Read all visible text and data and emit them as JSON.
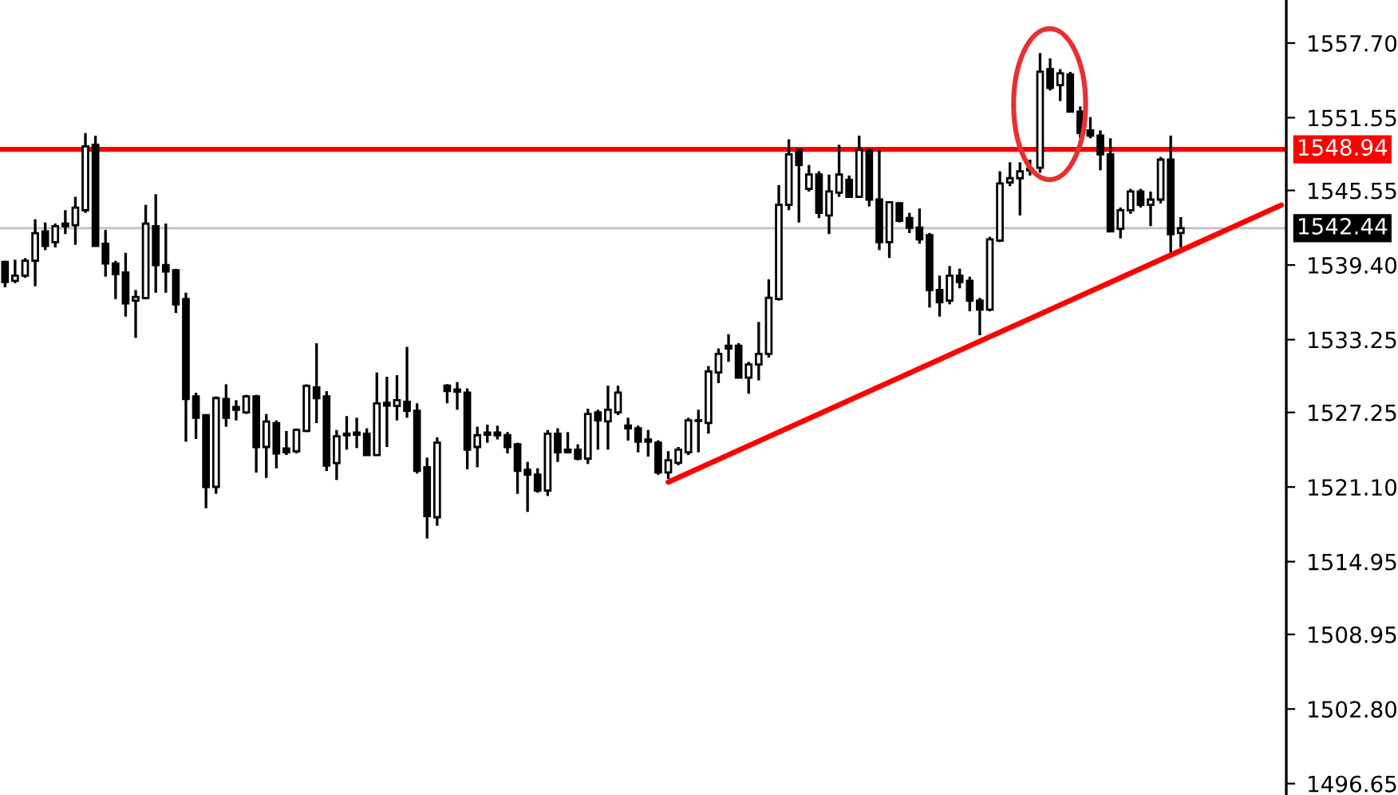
{
  "chart_data": {
    "type": "candlestick",
    "categories": [
      null,
      null,
      null,
      null,
      null,
      null,
      null,
      null,
      null,
      null,
      null,
      null,
      null,
      null,
      null,
      null,
      null,
      null,
      null,
      null,
      null,
      null,
      null,
      null,
      null,
      null,
      null,
      null,
      null,
      null,
      null,
      null,
      null,
      null,
      null,
      null,
      null,
      null,
      null,
      null,
      null,
      null,
      null,
      null,
      null,
      null,
      null,
      null,
      null,
      null,
      null,
      null,
      null,
      null,
      null,
      null,
      null,
      null,
      null,
      null,
      null,
      null,
      null,
      null,
      null,
      null,
      null,
      null,
      null,
      null,
      null,
      null,
      null,
      null,
      null,
      null,
      null,
      null,
      null,
      null,
      null,
      null,
      null,
      null,
      null,
      null,
      null,
      null,
      null,
      null,
      null,
      null,
      null,
      null,
      null,
      null,
      null,
      null,
      null,
      null,
      null,
      null,
      null,
      null,
      null,
      null,
      null,
      null,
      null,
      null,
      null,
      null,
      null,
      null,
      null,
      null,
      null,
      null,
      null,
      null,
      null,
      null,
      null,
      null,
      null,
      null,
      null,
      null
    ],
    "ohlc": [
      [
        1539.66,
        1539.75,
        1537.56,
        1538.0
      ],
      [
        1538.09,
        1539.84,
        1537.91,
        1538.52
      ],
      [
        1538.52,
        1539.97,
        1538.35,
        1539.75
      ],
      [
        1539.75,
        1543.17,
        1537.65,
        1542.03
      ],
      [
        1542.17,
        1542.91,
        1540.63,
        1540.98
      ],
      [
        1541.29,
        1542.82,
        1540.85,
        1542.6
      ],
      [
        1542.82,
        1543.92,
        1541.95,
        1542.6
      ],
      [
        1542.69,
        1545.02,
        1541.07,
        1544.14
      ],
      [
        1543.92,
        1550.28,
        1543.7,
        1549.18
      ],
      [
        1549.32,
        1550.06,
        1540.98,
        1540.98
      ],
      [
        1541.16,
        1542.3,
        1538.44,
        1539.53
      ],
      [
        1539.53,
        1539.75,
        1536.59,
        1538.66
      ],
      [
        1538.79,
        1540.41,
        1535.15,
        1536.24
      ],
      [
        1536.46,
        1537.34,
        1533.39,
        1536.77
      ],
      [
        1536.68,
        1544.36,
        1536.59,
        1542.82
      ],
      [
        1542.6,
        1545.24,
        1537.12,
        1539.4
      ],
      [
        1539.4,
        1542.82,
        1537.12,
        1538.87
      ],
      [
        1538.96,
        1539.09,
        1535.45,
        1536.16
      ],
      [
        1536.59,
        1537.12,
        1524.84,
        1528.35
      ],
      [
        1528.57,
        1528.87,
        1525.06,
        1526.81
      ],
      [
        1527.03,
        1527.03,
        1519.35,
        1521.11
      ],
      [
        1521.11,
        1528.57,
        1520.54,
        1528.43
      ],
      [
        1528.35,
        1529.57,
        1526.07,
        1526.81
      ],
      [
        1527.69,
        1528.26,
        1526.59,
        1527.47
      ],
      [
        1527.25,
        1528.7,
        1527.12,
        1528.57
      ],
      [
        1528.57,
        1528.7,
        1522.29,
        1524.4
      ],
      [
        1524.4,
        1527.12,
        1521.85,
        1526.5
      ],
      [
        1526.37,
        1526.59,
        1522.64,
        1523.87
      ],
      [
        1524.27,
        1525.72,
        1523.74,
        1523.96
      ],
      [
        1524.05,
        1525.93,
        1523.87,
        1525.8
      ],
      [
        1525.72,
        1529.57,
        1525.63,
        1529.44
      ],
      [
        1529.31,
        1532.95,
        1526.37,
        1528.43
      ],
      [
        1528.57,
        1529.0,
        1522.42,
        1522.86
      ],
      [
        1523.08,
        1525.8,
        1521.68,
        1525.28
      ],
      [
        1525.5,
        1526.95,
        1524.18,
        1525.37
      ],
      [
        1525.41,
        1526.81,
        1524.31,
        1525.59
      ],
      [
        1525.5,
        1525.94,
        1523.7,
        1523.74
      ],
      [
        1523.74,
        1530.54,
        1523.7,
        1528.0
      ],
      [
        1528.04,
        1530.19,
        1524.4,
        1527.82
      ],
      [
        1527.78,
        1530.32,
        1526.59,
        1528.26
      ],
      [
        1528.13,
        1532.65,
        1526.81,
        1527.38
      ],
      [
        1527.38,
        1528.0,
        1522.21,
        1522.43
      ],
      [
        1522.73,
        1523.52,
        1516.86,
        1518.7
      ],
      [
        1518.61,
        1525.19,
        1517.91,
        1524.75
      ],
      [
        1529.45,
        1529.58,
        1528.0,
        1529.01
      ],
      [
        1529.14,
        1529.75,
        1527.47,
        1528.96
      ],
      [
        1528.88,
        1529.23,
        1522.56,
        1524.18
      ],
      [
        1524.4,
        1526.07,
        1522.73,
        1525.37
      ],
      [
        1525.41,
        1526.24,
        1524.75,
        1525.59
      ],
      [
        1525.59,
        1526.16,
        1525.02,
        1525.37
      ],
      [
        1525.37,
        1525.63,
        1523.87,
        1524.4
      ],
      [
        1524.62,
        1524.75,
        1520.54,
        1522.43
      ],
      [
        1522.52,
        1523.17,
        1519.05,
        1522.12
      ],
      [
        1522.12,
        1522.65,
        1520.63,
        1520.8
      ],
      [
        1520.8,
        1525.8,
        1520.36,
        1525.5
      ],
      [
        1525.5,
        1525.94,
        1523.17,
        1523.96
      ],
      [
        1524.18,
        1525.63,
        1523.87,
        1523.96
      ],
      [
        1524.18,
        1524.62,
        1523.3,
        1523.44
      ],
      [
        1523.44,
        1527.56,
        1523.0,
        1527.12
      ],
      [
        1527.25,
        1527.47,
        1524.18,
        1526.59
      ],
      [
        1526.51,
        1529.45,
        1524.18,
        1527.47
      ],
      [
        1527.25,
        1529.45,
        1527.03,
        1528.88
      ],
      [
        1526.16,
        1526.81,
        1524.93,
        1525.94
      ],
      [
        1525.94,
        1526.16,
        1523.96,
        1524.84
      ],
      [
        1524.84,
        1525.8,
        1523.61,
        1525.02
      ],
      [
        1524.75,
        1524.95,
        1522.1,
        1522.3
      ],
      [
        1522.3,
        1524.05,
        1521.77,
        1523.31
      ],
      [
        1523.09,
        1524.4,
        1522.9,
        1524.18
      ],
      [
        1523.96,
        1526.81,
        1523.74,
        1526.6
      ],
      [
        1526.6,
        1527.47,
        1523.96,
        1526.55
      ],
      [
        1526.38,
        1531.07,
        1525.5,
        1530.63
      ],
      [
        1530.54,
        1532.52,
        1529.67,
        1532.08
      ],
      [
        1532.74,
        1533.7,
        1531.42,
        1532.52
      ],
      [
        1532.74,
        1532.96,
        1530.11,
        1530.11
      ],
      [
        1530.11,
        1531.42,
        1528.79,
        1531.2
      ],
      [
        1531.2,
        1534.71,
        1529.89,
        1532.08
      ],
      [
        1532.08,
        1538.22,
        1531.77,
        1536.69
      ],
      [
        1536.6,
        1545.99,
        1536.47,
        1544.36
      ],
      [
        1544.36,
        1549.76,
        1543.92,
        1548.53
      ],
      [
        1548.88,
        1548.97,
        1542.91,
        1547.65
      ],
      [
        1545.68,
        1547.65,
        1545.46,
        1546.86
      ],
      [
        1546.86,
        1547.13,
        1543.27,
        1543.7
      ],
      [
        1543.49,
        1546.86,
        1541.95,
        1545.46
      ],
      [
        1545.37,
        1549.32,
        1545.02,
        1546.86
      ],
      [
        1546.42,
        1546.78,
        1544.93,
        1545.02
      ],
      [
        1545.02,
        1550.07,
        1544.93,
        1548.88
      ],
      [
        1548.88,
        1548.97,
        1544.23,
        1544.8
      ],
      [
        1544.8,
        1548.88,
        1540.63,
        1541.29
      ],
      [
        1541.29,
        1544.58,
        1539.98,
        1544.58
      ],
      [
        1544.49,
        1544.58,
        1542.91,
        1543.05
      ],
      [
        1543.27,
        1543.7,
        1542.04,
        1542.48
      ],
      [
        1542.48,
        1544.06,
        1541.16,
        1541.51
      ],
      [
        1541.86,
        1542.04,
        1535.9,
        1537.34
      ],
      [
        1537.34,
        1538.53,
        1535.15,
        1536.33
      ],
      [
        1536.47,
        1539.32,
        1536.16,
        1538.53
      ],
      [
        1538.53,
        1539.1,
        1537.48,
        1538.0
      ],
      [
        1538.09,
        1538.44,
        1535.59,
        1536.47
      ],
      [
        1536.47,
        1536.69,
        1533.61,
        1535.72
      ],
      [
        1535.72,
        1541.73,
        1535.59,
        1541.51
      ],
      [
        1541.42,
        1547.13,
        1541.29,
        1546.12
      ],
      [
        1546.21,
        1547.87,
        1545.9,
        1546.56
      ],
      [
        1546.56,
        1547.87,
        1543.49,
        1547.13
      ],
      [
        1547.21,
        1548.09,
        1546.78,
        1547.35
      ],
      [
        1547.43,
        1556.87,
        1547.0,
        1555.33
      ],
      [
        1555.55,
        1556.43,
        1553.79,
        1554.01
      ],
      [
        1554.23,
        1555.55,
        1552.92,
        1555.2
      ],
      [
        1555.11,
        1555.33,
        1552.04,
        1552.04
      ],
      [
        1552.04,
        1552.48,
        1549.85,
        1550.28
      ],
      [
        1550.5,
        1551.6,
        1549.85,
        1550.07
      ],
      [
        1550.07,
        1550.5,
        1547.21,
        1548.53
      ],
      [
        1548.53,
        1549.85,
        1542.17,
        1542.17
      ],
      [
        1542.39,
        1544.14,
        1541.6,
        1543.92
      ],
      [
        1543.92,
        1545.68,
        1543.62,
        1545.46
      ],
      [
        1545.46,
        1545.68,
        1544.14,
        1544.36
      ],
      [
        1544.36,
        1545.46,
        1542.61,
        1544.8
      ],
      [
        1544.8,
        1548.31,
        1544.49,
        1548.09
      ],
      [
        1548.09,
        1550.07,
        1540.41,
        1541.95
      ],
      [
        1542.04,
        1543.35,
        1540.85,
        1542.44
      ],
      null,
      null,
      null,
      null,
      null,
      null,
      null,
      null,
      null,
      null
    ],
    "series": [
      {
        "type": "line",
        "color": "#ff0000",
        "values": [
          null,
          null,
          null,
          null,
          null,
          null,
          null,
          null,
          null,
          null,
          null,
          null,
          null,
          null,
          null,
          null,
          null,
          null,
          null,
          null,
          null,
          null,
          null,
          null,
          null,
          null,
          null,
          null,
          null,
          null,
          null,
          null,
          null,
          null,
          null,
          null,
          null,
          null,
          null,
          null,
          null,
          null,
          null,
          null,
          null,
          null,
          null,
          null,
          null,
          null,
          null,
          null,
          null,
          null,
          null,
          null,
          null,
          null,
          null,
          null,
          null,
          null,
          null,
          null,
          null,
          null,
          1521.51,
          null,
          null,
          null,
          null,
          null,
          null,
          null,
          null,
          null,
          null,
          null,
          null,
          null,
          null,
          null,
          null,
          null,
          null,
          null,
          null,
          null,
          null,
          null,
          null,
          null,
          null,
          null,
          null,
          null,
          null,
          null,
          null,
          null,
          null,
          null,
          null,
          null,
          null,
          null,
          null,
          null,
          null,
          null,
          null,
          null,
          null,
          null,
          null,
          null,
          null,
          null,
          null,
          null,
          null,
          null,
          null,
          null,
          null,
          null,
          null,
          1544.34
        ]
      }
    ],
    "ylim": [
      1495.71,
      1561.25
    ],
    "yticks": [
      {
        "value": 1557.7,
        "label": "1557.70"
      },
      {
        "value": 1551.55,
        "label": "1551.55"
      },
      {
        "value": 1545.55,
        "label": "1545.55"
      },
      {
        "value": 1539.4,
        "label": "1539.40"
      },
      {
        "value": 1533.25,
        "label": "1533.25"
      },
      {
        "value": 1527.25,
        "label": "1527.25"
      },
      {
        "value": 1521.1,
        "label": "1521.10"
      },
      {
        "value": 1514.95,
        "label": "1514.95"
      },
      {
        "value": 1508.95,
        "label": "1508.95"
      },
      {
        "value": 1502.8,
        "label": "1502.80"
      },
      {
        "value": 1496.65,
        "label": "1496.65"
      }
    ],
    "ref_lines": [
      {
        "axis": "y",
        "value": 1548.94,
        "label": "1548.94",
        "color": "#ff0000"
      },
      {
        "axis": "y",
        "value": 1542.44,
        "label": "1542.44",
        "color": "#c0c0c0"
      }
    ],
    "tick_labels": "y"
  }
}
